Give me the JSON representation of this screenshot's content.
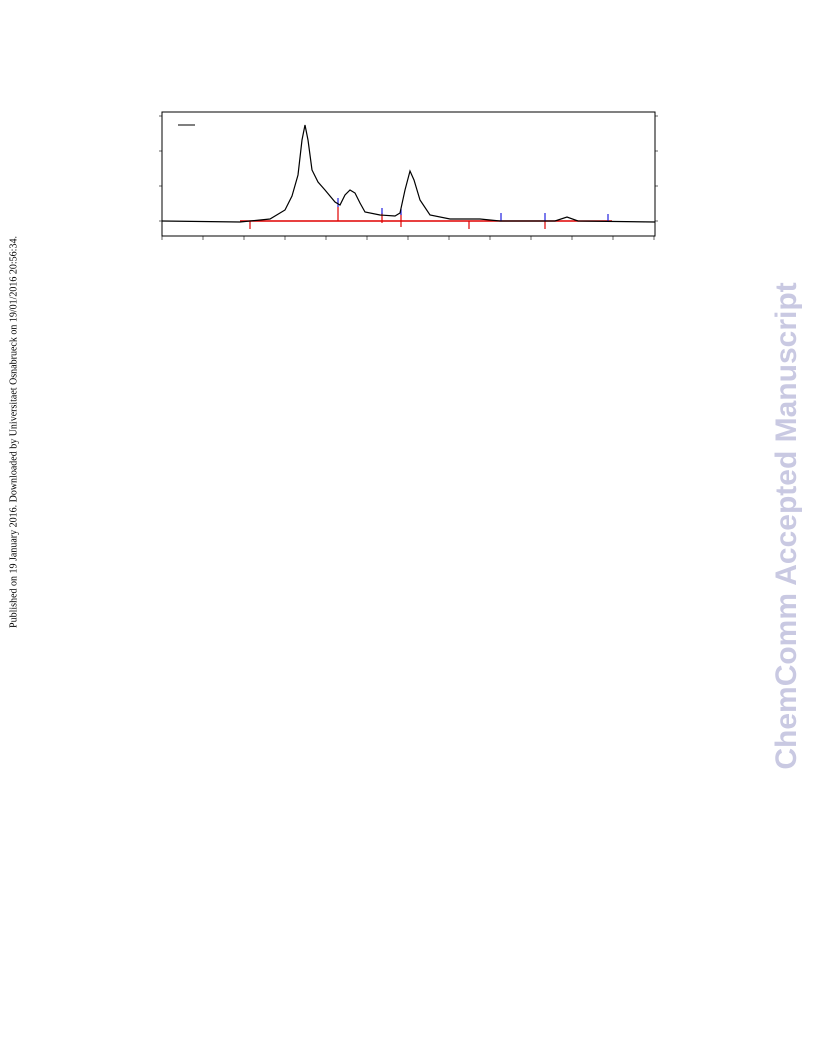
{
  "side_note": "Published on 19 January 2016. Downloaded by Universitaet Osnabrueck on 19/01/2016 20:56:34.",
  "watermark": "ChemComm Accepted Manuscript"
}
